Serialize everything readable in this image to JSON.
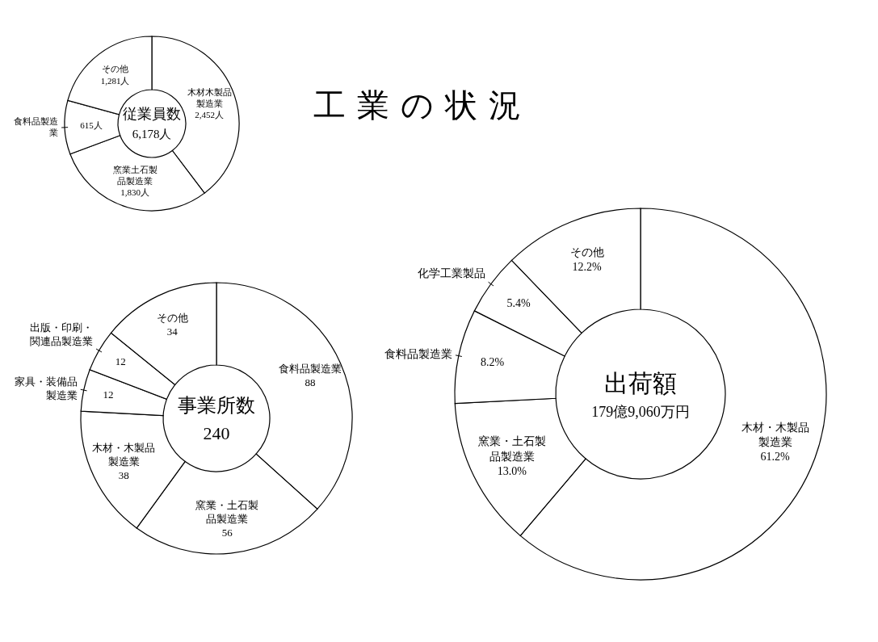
{
  "chart_data": [
    {
      "type": "donut",
      "title": "工業の状況",
      "annotations": [
        "従業員数",
        "6,178人"
      ],
      "categories": [
        "木材木製品製造業",
        "窯業土石製品製造業",
        "食料品製造業",
        "その他"
      ],
      "values": [
        2452,
        1830,
        615,
        1281
      ],
      "value_labels": [
        "2,452人",
        "1,830人",
        "615人",
        "1,281人"
      ],
      "colors": [
        "#ffffff",
        "#ffffff",
        "#ffffff",
        "#ffffff"
      ]
    },
    {
      "type": "donut",
      "annotations": [
        "事業所数",
        "240"
      ],
      "categories": [
        "食料品製造業",
        "窯業・土石製品製造業",
        "木材・木製品製造業",
        "家具・装備品製造業",
        "出版・印刷・関連品製造業",
        "その他"
      ],
      "values": [
        88,
        56,
        38,
        12,
        12,
        34
      ],
      "value_labels": [
        "88",
        "56",
        "38",
        "12",
        "12",
        "34"
      ],
      "colors": [
        "#ffffff",
        "#ffffff",
        "#ffffff",
        "#ffffff",
        "#ffffff",
        "#ffffff"
      ]
    },
    {
      "type": "donut",
      "annotations": [
        "出荷額",
        "179億9,060万円"
      ],
      "categories": [
        "木材・木製品製造業",
        "窯業・土石製品製造業",
        "食料品製造業",
        "化学工業製品",
        "その他"
      ],
      "values": [
        61.2,
        13.0,
        8.2,
        5.4,
        12.2
      ],
      "value_labels": [
        "61.2%",
        "13.0%",
        "8.2%",
        "5.4%",
        "12.2%"
      ],
      "colors": [
        "#ffffff",
        "#ffffff",
        "#ffffff",
        "#ffffff",
        "#ffffff"
      ]
    }
  ]
}
